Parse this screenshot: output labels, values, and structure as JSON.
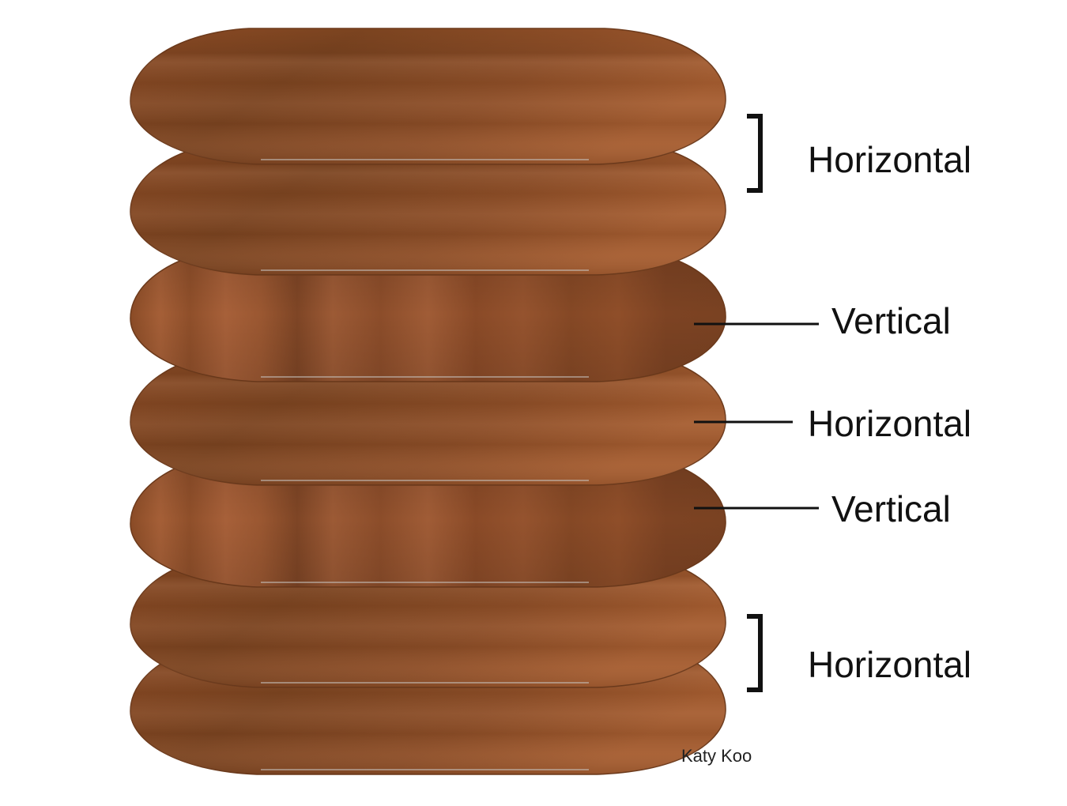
{
  "diagram": {
    "layers": [
      {
        "grain": "horizontal"
      },
      {
        "grain": "horizontal"
      },
      {
        "grain": "vertical"
      },
      {
        "grain": "horizontal"
      },
      {
        "grain": "vertical"
      },
      {
        "grain": "horizontal"
      },
      {
        "grain": "horizontal"
      }
    ],
    "labels": {
      "top": "Horizontal",
      "vertical_1": "Vertical",
      "middle": "Horizontal",
      "vertical_2": "Vertical",
      "bottom": "Horizontal"
    },
    "credit": "Katy Koo",
    "colors": {
      "wood_dark": "#7a4421",
      "wood_mid": "#8e4f27",
      "wood_light": "#a45d31",
      "rim": "#c7c3c0",
      "ink": "#111111"
    }
  }
}
